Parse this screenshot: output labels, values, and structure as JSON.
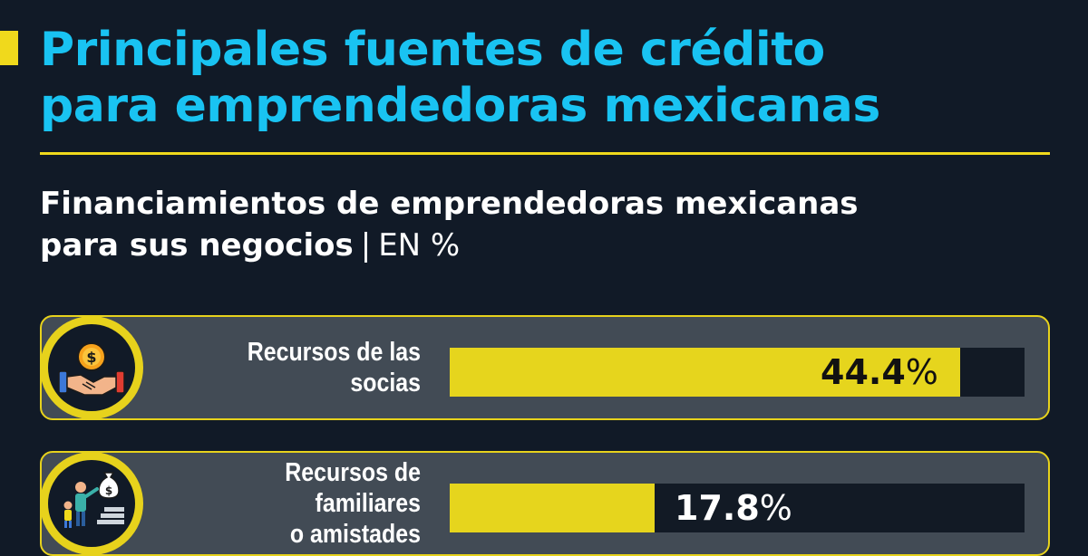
{
  "header": {
    "title_lines": [
      "Principales fuentes de crédito",
      "para emprendedoras mexicanas"
    ]
  },
  "chart_data": {
    "type": "bar",
    "orientation": "horizontal",
    "title_lines": [
      "Financiamientos de emprendedoras mexicanas",
      "para sus negocios"
    ],
    "unit_separator": "|",
    "unit": "EN %",
    "xlim": [
      0,
      50
    ],
    "categories": [
      [
        "Recursos de las socias"
      ],
      [
        "Recursos de familiares",
        "o amistades"
      ]
    ],
    "values": [
      44.4,
      17.8
    ],
    "value_labels": [
      "44.4",
      "17.8"
    ],
    "value_suffix": "%",
    "icons": [
      "handshake-money-icon",
      "family-money-bag-icon"
    ]
  },
  "colors": {
    "background": "#111a27",
    "title": "#19c3f2",
    "accent": "#e6d51d",
    "panel": "#424b55",
    "track": "#121a25",
    "text": "#ffffff"
  }
}
